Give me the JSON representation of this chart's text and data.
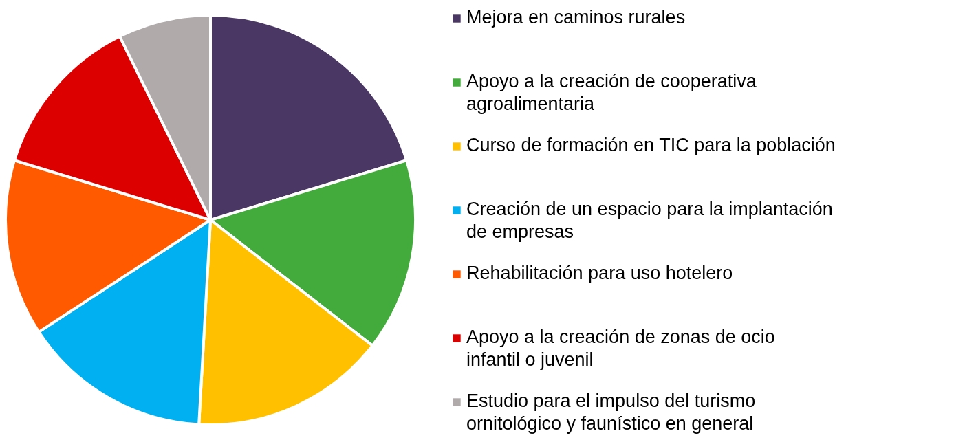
{
  "chart_data": {
    "type": "pie",
    "categories": [
      "Mejora en caminos rurales",
      "Apoyo a la creación de cooperativa agroalimentaria",
      "Curso de formación en TIC para la población",
      "Creación de un espacio para la implantación de empresas",
      "Rehabilitación para uso hotelero",
      "Apoyo a la creación de zonas de ocio infantil o juvenil",
      "Estudio para el impulso del turismo ornitológico  y faunístico en general"
    ],
    "values": [
      20.3,
      15.2,
      15.4,
      14.9,
      13.9,
      13.0,
      7.3
    ],
    "colors": [
      "#4a3763",
      "#43ab3c",
      "#ffc000",
      "#00b0f0",
      "#ff5a00",
      "#dc0000",
      "#b0aaab"
    ],
    "legend": "right"
  }
}
